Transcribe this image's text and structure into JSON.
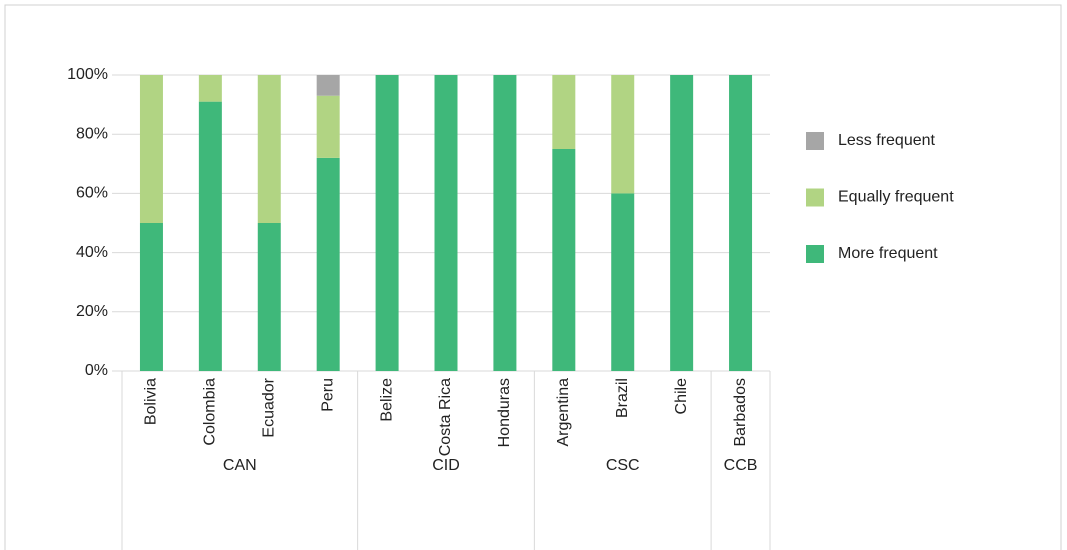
{
  "chart_data": {
    "type": "stacked_bar",
    "groups": [
      {
        "label": "CAN",
        "categories": [
          "Bolivia",
          "Colombia",
          "Ecuador",
          "Peru"
        ]
      },
      {
        "label": "CID",
        "categories": [
          "Belize",
          "Costa Rica",
          "Honduras"
        ]
      },
      {
        "label": "CSC",
        "categories": [
          "Argentina",
          "Brazil",
          "Chile"
        ]
      },
      {
        "label": "CCB",
        "categories": [
          "Barbados"
        ]
      }
    ],
    "series": [
      {
        "name": "More frequent",
        "color": "#3fb87a",
        "values": [
          50,
          91,
          50,
          72,
          100,
          100,
          100,
          75,
          60,
          100,
          100
        ]
      },
      {
        "name": "Equally frequent",
        "color": "#b1d483",
        "values": [
          50,
          9,
          50,
          21,
          0,
          0,
          0,
          25,
          40,
          0,
          0
        ]
      },
      {
        "name": "Less frequent",
        "color": "#a6a6a6",
        "values": [
          0,
          0,
          0,
          7,
          0,
          0,
          0,
          0,
          0,
          0,
          0
        ]
      }
    ],
    "ylim": [
      0,
      100
    ],
    "yticks": [
      {
        "value": 0,
        "label": "0%"
      },
      {
        "value": 20,
        "label": "20%"
      },
      {
        "value": 40,
        "label": "40%"
      },
      {
        "value": 60,
        "label": "60%"
      },
      {
        "value": 80,
        "label": "80%"
      },
      {
        "value": 100,
        "label": "100%"
      }
    ],
    "grid": true,
    "legend": "right"
  }
}
